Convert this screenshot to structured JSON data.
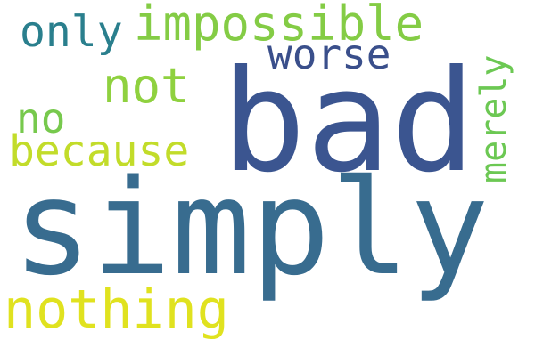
{
  "words": {
    "simply": {
      "text": "simply",
      "color": "#386c8f"
    },
    "bad": {
      "text": "bad",
      "color": "#3b5590"
    },
    "impossible": {
      "text": "impossible",
      "color": "#84cc45"
    },
    "only": {
      "text": "only",
      "color": "#2a7f8d"
    },
    "worse": {
      "text": "worse",
      "color": "#3a4f8b"
    },
    "not": {
      "text": "not",
      "color": "#8fd13f"
    },
    "no": {
      "text": "no",
      "color": "#77c94d"
    },
    "because": {
      "text": "because",
      "color": "#c2dc2a"
    },
    "nothing": {
      "text": "nothing",
      "color": "#e0e21f"
    },
    "merely": {
      "text": "merely",
      "color": "#6cc853"
    }
  },
  "background_color": "#ffffff"
}
